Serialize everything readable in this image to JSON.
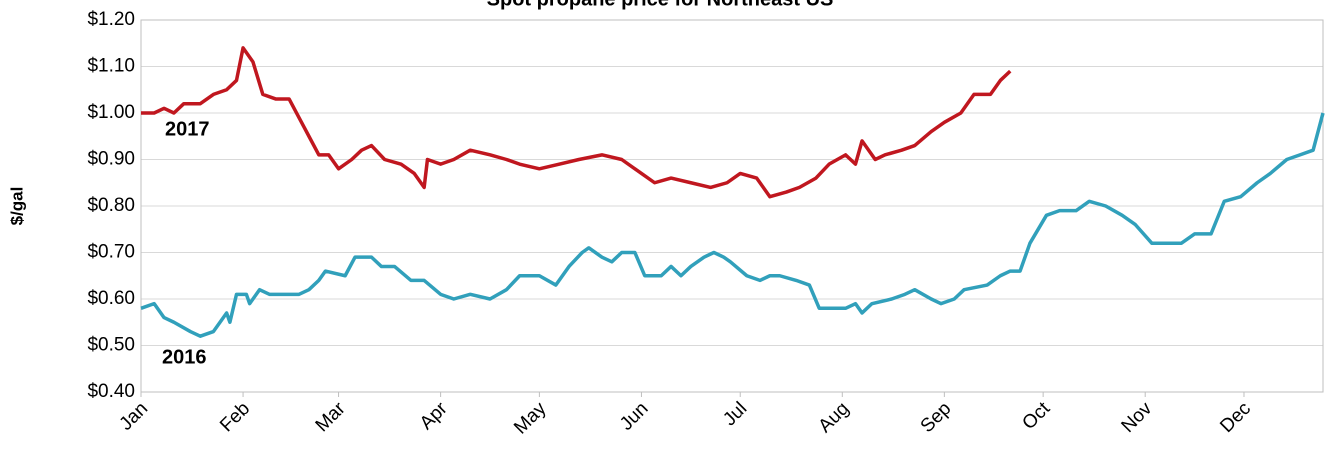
{
  "chart_data": {
    "type": "line",
    "title": "Spot propane price for Northeast US",
    "y_label": "$/gal",
    "xlim": [
      0,
      359
    ],
    "xticks": [
      {
        "value": 0,
        "label": "Jan"
      },
      {
        "value": 31,
        "label": "Feb"
      },
      {
        "value": 60,
        "label": "Mar"
      },
      {
        "value": 91,
        "label": "Apr"
      },
      {
        "value": 121,
        "label": "May"
      },
      {
        "value": 152,
        "label": "Jun"
      },
      {
        "value": 182,
        "label": "Jul"
      },
      {
        "value": 213,
        "label": "Aug"
      },
      {
        "value": 244,
        "label": "Sep"
      },
      {
        "value": 274,
        "label": "Oct"
      },
      {
        "value": 305,
        "label": "Nov"
      },
      {
        "value": 335,
        "label": "Dec"
      }
    ],
    "ylim": [
      0.4,
      1.2
    ],
    "yticks": [
      {
        "value": 0.4,
        "label": "$0.40"
      },
      {
        "value": 0.5,
        "label": "$0.50"
      },
      {
        "value": 0.6,
        "label": "$0.60"
      },
      {
        "value": 0.7,
        "label": "$0.70"
      },
      {
        "value": 0.8,
        "label": "$0.80"
      },
      {
        "value": 0.9,
        "label": "$0.90"
      },
      {
        "value": 1.0,
        "label": "$1.00"
      },
      {
        "value": 1.1,
        "label": "$1.10"
      },
      {
        "value": 1.2,
        "label": "$1.20"
      }
    ],
    "grid": true,
    "series": [
      {
        "name": "2017",
        "color": "#c0171f",
        "x": [
          0,
          4,
          7,
          10,
          13,
          18,
          22,
          26,
          29,
          31,
          34,
          37,
          41,
          45,
          48,
          51,
          54,
          57,
          60,
          64,
          67,
          70,
          74,
          79,
          83,
          86,
          87,
          91,
          95,
          100,
          106,
          111,
          115,
          121,
          127,
          133,
          140,
          146,
          152,
          156,
          161,
          167,
          173,
          178,
          182,
          187,
          191,
          196,
          200,
          205,
          209,
          214,
          217,
          219,
          223,
          226,
          231,
          235,
          240,
          244,
          249,
          253,
          258,
          261,
          264
        ],
        "values": [
          1.0,
          1.0,
          1.01,
          1.0,
          1.02,
          1.02,
          1.04,
          1.05,
          1.07,
          1.14,
          1.11,
          1.04,
          1.03,
          1.03,
          0.99,
          0.95,
          0.91,
          0.91,
          0.88,
          0.9,
          0.92,
          0.93,
          0.9,
          0.89,
          0.87,
          0.84,
          0.9,
          0.89,
          0.9,
          0.92,
          0.91,
          0.9,
          0.89,
          0.88,
          0.89,
          0.9,
          0.91,
          0.9,
          0.87,
          0.85,
          0.86,
          0.85,
          0.84,
          0.85,
          0.87,
          0.86,
          0.82,
          0.83,
          0.84,
          0.86,
          0.89,
          0.91,
          0.89,
          0.94,
          0.9,
          0.91,
          0.92,
          0.93,
          0.96,
          0.98,
          1.0,
          1.04,
          1.04,
          1.07,
          1.09
        ]
      },
      {
        "name": "2016",
        "color": "#31a0bb",
        "x": [
          0,
          4,
          7,
          10,
          15,
          18,
          22,
          26,
          27,
          29,
          32,
          33,
          36,
          39,
          44,
          48,
          51,
          54,
          56,
          62,
          65,
          70,
          73,
          77,
          82,
          86,
          91,
          95,
          100,
          106,
          111,
          115,
          121,
          126,
          130,
          134,
          136,
          140,
          143,
          146,
          150,
          153,
          158,
          161,
          164,
          167,
          171,
          174,
          177,
          179,
          184,
          188,
          191,
          194,
          199,
          203,
          206,
          209,
          214,
          217,
          219,
          222,
          228,
          232,
          235,
          240,
          243,
          247,
          250,
          257,
          261,
          264,
          267,
          270,
          275,
          279,
          284,
          288,
          293,
          298,
          302,
          307,
          311,
          316,
          320,
          325,
          329,
          334,
          339,
          343,
          348,
          352,
          356,
          359
        ],
        "values": [
          0.58,
          0.59,
          0.56,
          0.55,
          0.53,
          0.52,
          0.53,
          0.57,
          0.55,
          0.61,
          0.61,
          0.59,
          0.62,
          0.61,
          0.61,
          0.61,
          0.62,
          0.64,
          0.66,
          0.65,
          0.69,
          0.69,
          0.67,
          0.67,
          0.64,
          0.64,
          0.61,
          0.6,
          0.61,
          0.6,
          0.62,
          0.65,
          0.65,
          0.63,
          0.67,
          0.7,
          0.71,
          0.69,
          0.68,
          0.7,
          0.7,
          0.65,
          0.65,
          0.67,
          0.65,
          0.67,
          0.69,
          0.7,
          0.69,
          0.68,
          0.65,
          0.64,
          0.65,
          0.65,
          0.64,
          0.63,
          0.58,
          0.58,
          0.58,
          0.59,
          0.57,
          0.59,
          0.6,
          0.61,
          0.62,
          0.6,
          0.59,
          0.6,
          0.62,
          0.63,
          0.65,
          0.66,
          0.66,
          0.72,
          0.78,
          0.79,
          0.79,
          0.81,
          0.8,
          0.78,
          0.76,
          0.72,
          0.72,
          0.72,
          0.74,
          0.74,
          0.81,
          0.82,
          0.85,
          0.87,
          0.9,
          0.91,
          0.92,
          1.0
        ]
      }
    ]
  }
}
